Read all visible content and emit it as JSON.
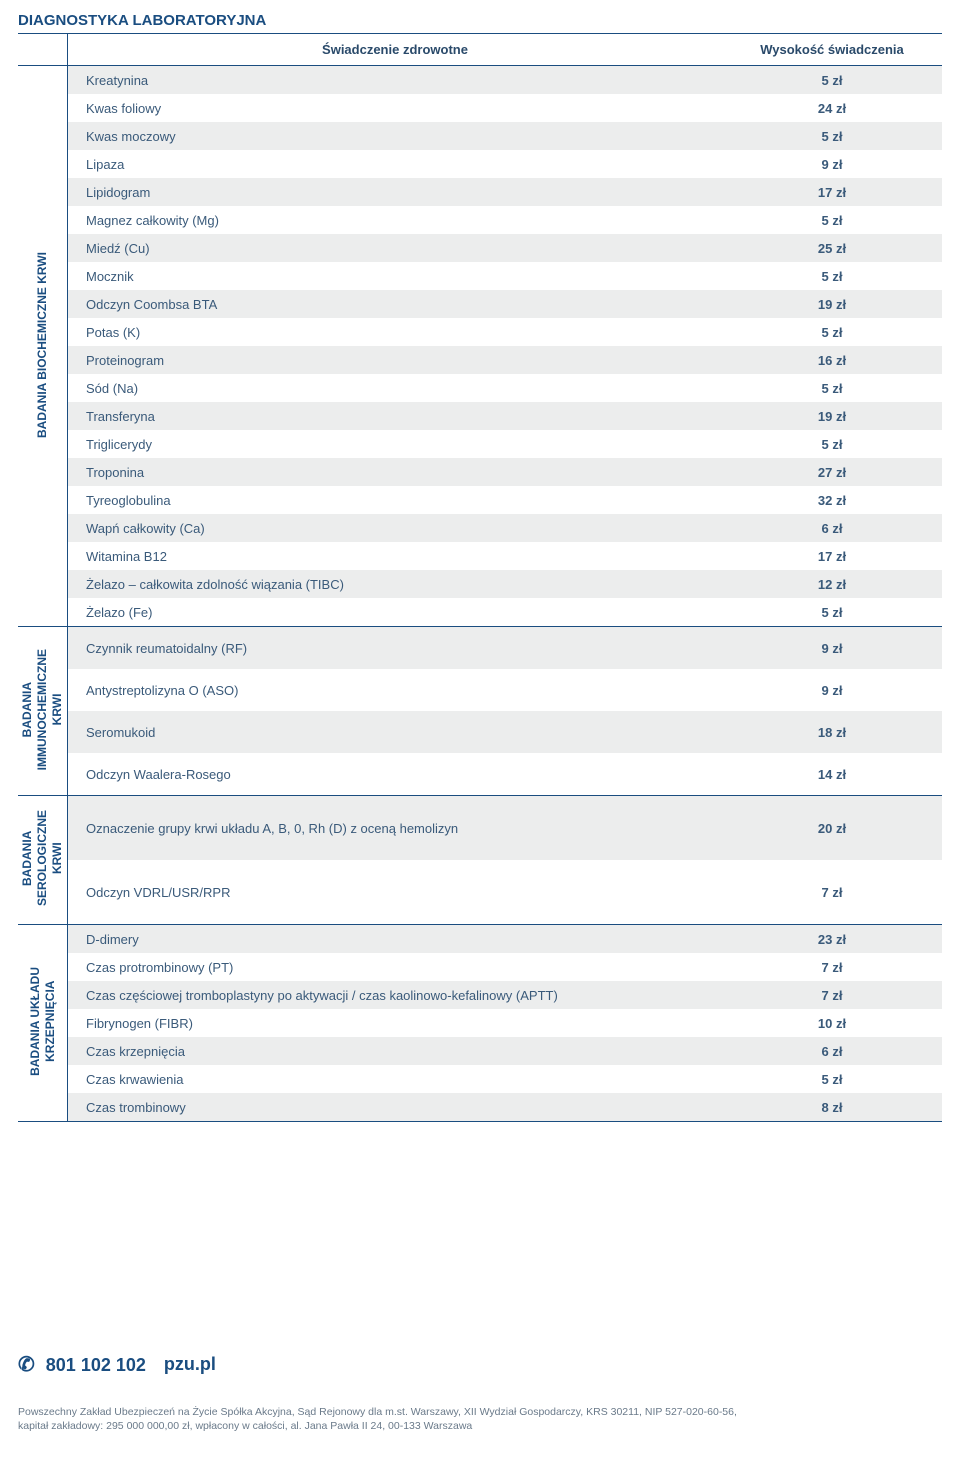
{
  "title": "DIAGNOSTYKA LABORATORYJNA",
  "header": {
    "svc": "Świadczenie zdrowotne",
    "price": "Wysokość świadczenia"
  },
  "groups": [
    {
      "label": "BADANIA BIOCHEMICZNE KRWI",
      "rows": [
        {
          "name": "Kreatynina",
          "price": "5 zł"
        },
        {
          "name": "Kwas foliowy",
          "price": "24 zł"
        },
        {
          "name": "Kwas moczowy",
          "price": "5 zł"
        },
        {
          "name": "Lipaza",
          "price": "9 zł"
        },
        {
          "name": "Lipidogram",
          "price": "17 zł"
        },
        {
          "name": "Magnez całkowity (Mg)",
          "price": "5 zł"
        },
        {
          "name": "Miedź (Cu)",
          "price": "25 zł"
        },
        {
          "name": "Mocznik",
          "price": "5 zł"
        },
        {
          "name": "Odczyn Coombsa BTA",
          "price": "19 zł"
        },
        {
          "name": "Potas (K)",
          "price": "5 zł"
        },
        {
          "name": "Proteinogram",
          "price": "16 zł"
        },
        {
          "name": "Sód (Na)",
          "price": "5 zł"
        },
        {
          "name": "Transferyna",
          "price": "19 zł"
        },
        {
          "name": "Triglicerydy",
          "price": "5 zł"
        },
        {
          "name": "Troponina",
          "price": "27 zł"
        },
        {
          "name": "Tyreoglobulina",
          "price": "32 zł"
        },
        {
          "name": "Wapń całkowity (Ca)",
          "price": "6 zł"
        },
        {
          "name": "Witamina B12",
          "price": "17 zł"
        },
        {
          "name": "Żelazo – całkowita zdolność wiązania (TIBC)",
          "price": "12 zł"
        },
        {
          "name": "Żelazo (Fe)",
          "price": "5 zł"
        }
      ]
    },
    {
      "label": "BADANIA\nIMMUNOCHEMICZNE\nKRWI",
      "tall": true,
      "rows": [
        {
          "name": "Czynnik reumatoidalny (RF)",
          "price": "9 zł"
        },
        {
          "name": "Antystreptolizyna O (ASO)",
          "price": "9 zł"
        },
        {
          "name": "Seromukoid",
          "price": "18 zł"
        },
        {
          "name": "Odczyn Waalera-Rosego",
          "price": "14 zł"
        }
      ]
    },
    {
      "label": "BADANIA\nSEROLOGICZNE\nKRWI",
      "tall": true,
      "rows": [
        {
          "name": "Oznaczenie grupy krwi układu A, B, 0, Rh (D) z oceną hemolizyn",
          "price": "20 zł"
        },
        {
          "name": "Odczyn VDRL/USR/RPR",
          "price": "7 zł"
        }
      ]
    },
    {
      "label": "BADANIA UKŁADU\nKRZEPNIĘCIA",
      "rows": [
        {
          "name": "D-dimery",
          "price": "23 zł"
        },
        {
          "name": "Czas protrombinowy (PT)",
          "price": "7 zł"
        },
        {
          "name": "Czas częściowej tromboplastyny po aktywacji / czas kaolinowo-kefalinowy (APTT)",
          "price": "7 zł"
        },
        {
          "name": "Fibrynogen (FIBR)",
          "price": "10 zł"
        },
        {
          "name": "Czas krzepnięcia",
          "price": "6 zł"
        },
        {
          "name": "Czas krwawienia",
          "price": "5 zł"
        },
        {
          "name": "Czas trombinowy",
          "price": "8 zł"
        }
      ]
    }
  ],
  "footer": {
    "phone": "801 102 102",
    "site": "pzu.pl",
    "legal1": "Powszechny Zakład Ubezpieczeń na Życie Spółka Akcyjna, Sąd Rejonowy dla m.st. Warszawy, XII Wydział Gospodarczy, KRS 30211, NIP 527-020-60-56,",
    "legal2": "kapitał zakładowy: 295 000 000,00 zł, wpłacony w całości, al. Jana Pawła II 24, 00-133 Warszawa"
  },
  "style": {
    "row_alt_bg": "#eceded",
    "border_color": "#1a4d80",
    "text_color": "#3a5a7a"
  }
}
